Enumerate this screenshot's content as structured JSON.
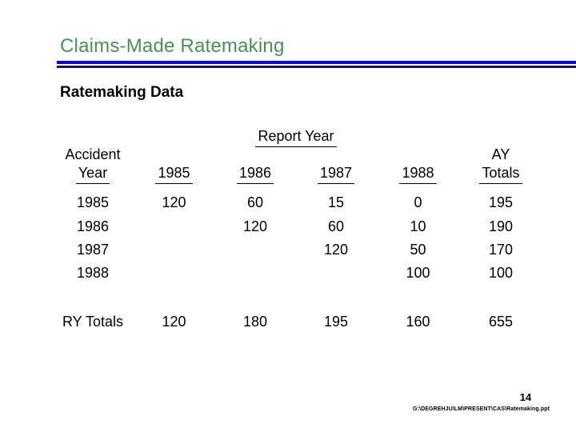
{
  "slide": {
    "title": "Claims-Made Ratemaking",
    "subtitle": "Ratemaking Data",
    "page_number": "14",
    "footer_path": "G:\\DEGREHJU\\LM\\PRESENT\\CAS\\Ratemaking.ppt",
    "colors": {
      "title_green": "#479155",
      "rule_blue": "#0a0ad2",
      "rule_navy": "#14146a"
    }
  },
  "table": {
    "report_year_label": "Report Year",
    "row_header_line1": "Accident",
    "row_header_line2": "Year",
    "year_headers": [
      "1985",
      "1986",
      "1987",
      "1988"
    ],
    "ay_totals_line1": "AY",
    "ay_totals_line2": "Totals",
    "rows": [
      {
        "accident_year": "1985",
        "values": [
          "120",
          "60",
          "15",
          "0"
        ],
        "ay_total": "195"
      },
      {
        "accident_year": "1986",
        "values": [
          "",
          "120",
          "60",
          "10"
        ],
        "ay_total": "190"
      },
      {
        "accident_year": "1987",
        "values": [
          "",
          "",
          "120",
          "50"
        ],
        "ay_total": "170"
      },
      {
        "accident_year": "1988",
        "values": [
          "",
          "",
          "",
          "100"
        ],
        "ay_total": "100"
      }
    ],
    "totals_row": {
      "label": "RY Totals",
      "values": [
        "120",
        "180",
        "195",
        "160"
      ],
      "total": "655"
    }
  }
}
